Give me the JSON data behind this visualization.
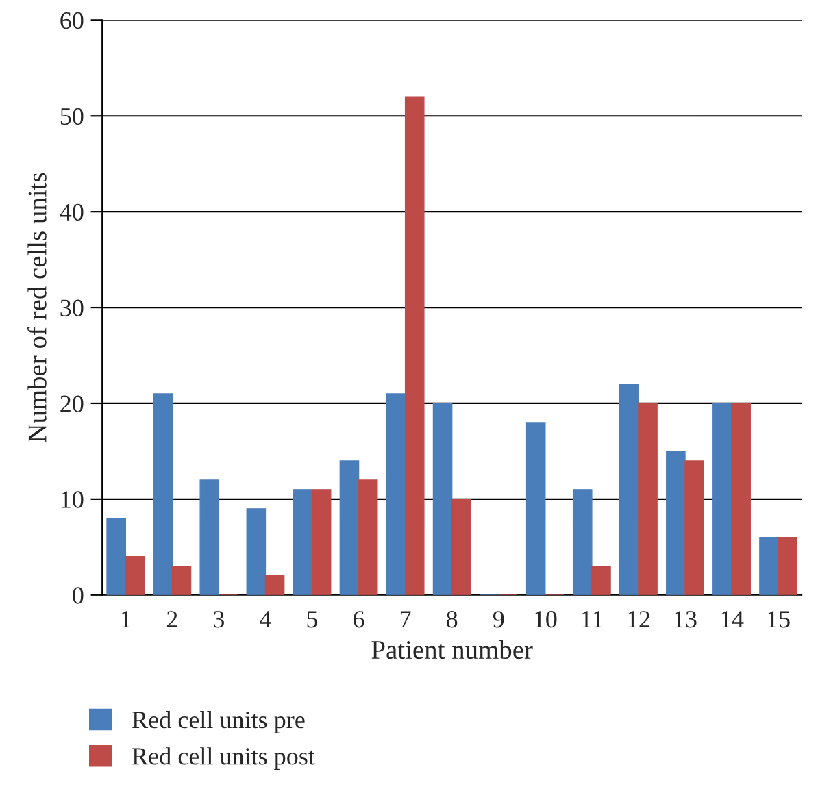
{
  "chart_data": {
    "type": "bar",
    "xlabel": "Patient number",
    "ylabel": "Number of red cells units",
    "categories": [
      "1",
      "2",
      "3",
      "4",
      "5",
      "6",
      "7",
      "8",
      "9",
      "10",
      "11",
      "12",
      "13",
      "14",
      "15"
    ],
    "series": [
      {
        "name": "Red cell units pre",
        "color": "#4a7ebb",
        "values": [
          8,
          21,
          12,
          9,
          11,
          14,
          21,
          20,
          0,
          18,
          11,
          22,
          15,
          20,
          6
        ]
      },
      {
        "name": "Red cell units post",
        "color": "#be4b48",
        "values": [
          4,
          3,
          0,
          2,
          11,
          12,
          52,
          10,
          0,
          0,
          3,
          20,
          14,
          20,
          6
        ]
      }
    ],
    "ylim": [
      0,
      60
    ],
    "yticks": [
      0,
      10,
      20,
      30,
      40,
      50,
      60
    ],
    "grid": "y",
    "legend": "bottom"
  }
}
